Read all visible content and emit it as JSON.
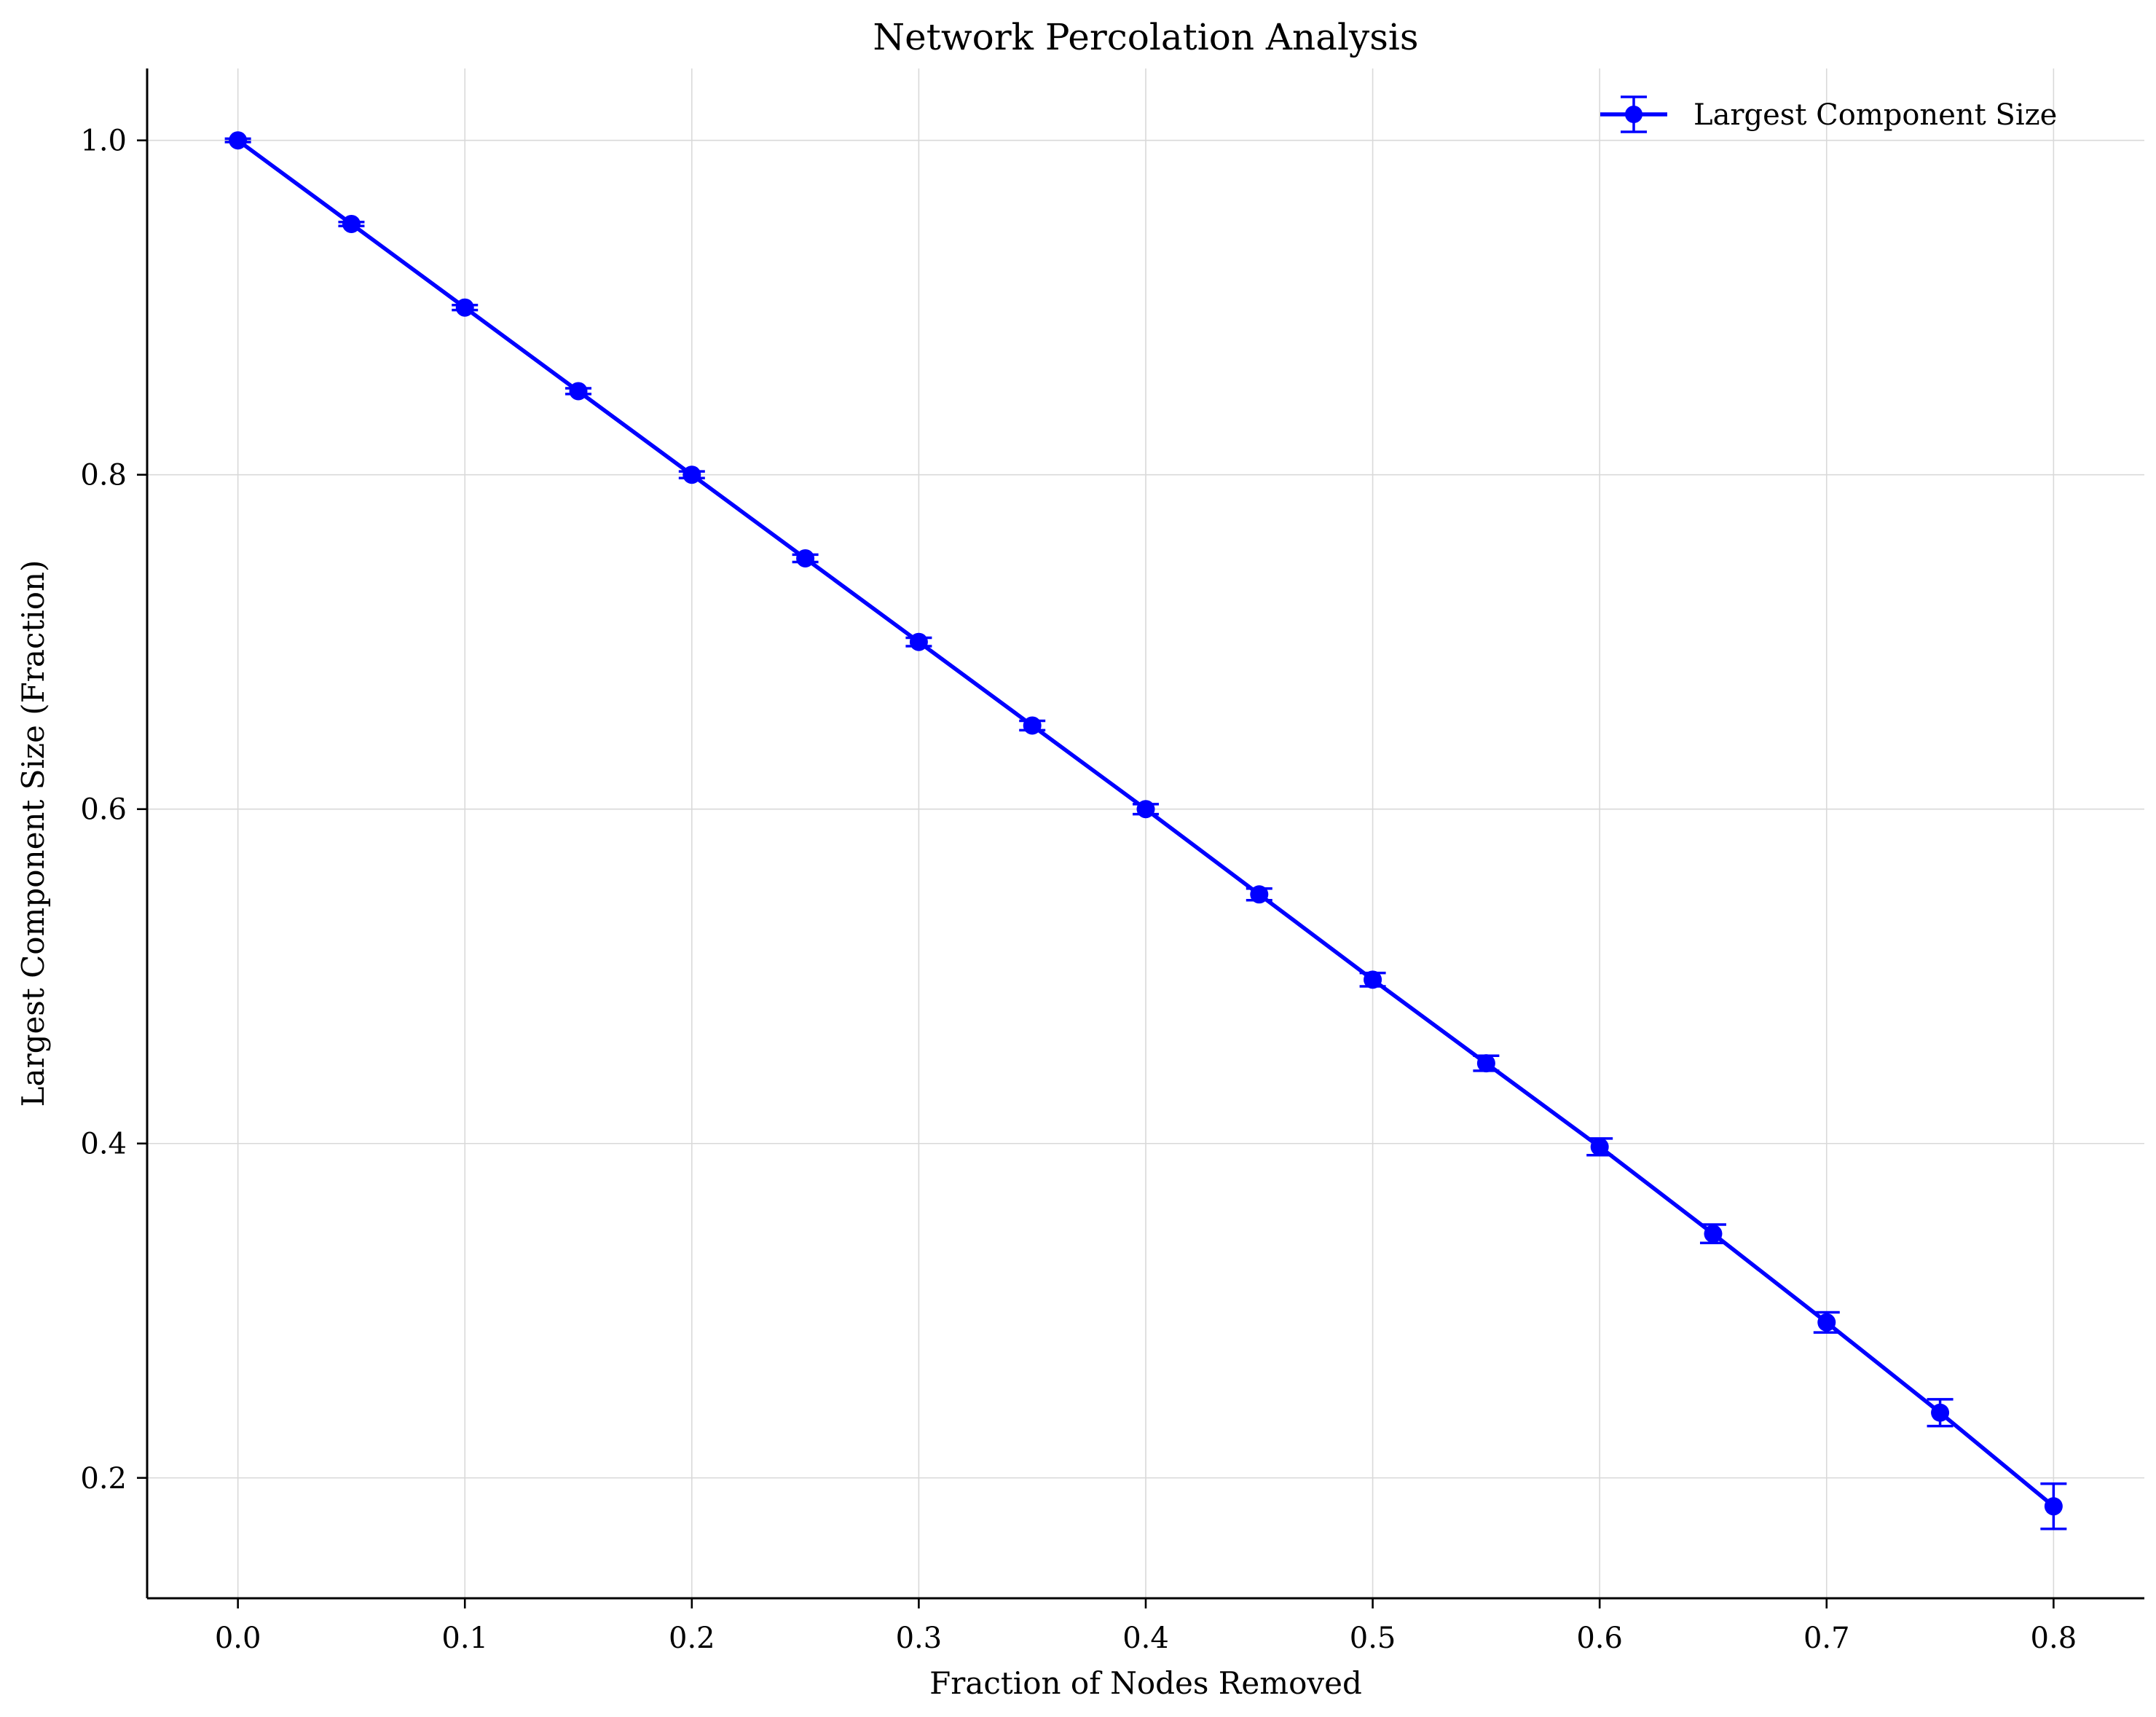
{
  "chart_data": {
    "type": "line",
    "title": "Network Percolation Analysis",
    "xlabel": "Fraction of Nodes Removed",
    "ylabel": "Largest Component Size (Fraction)",
    "xlim": [
      -0.04,
      0.84
    ],
    "ylim": [
      0.128,
      1.043
    ],
    "xticks": [
      0.0,
      0.1,
      0.2,
      0.3,
      0.4,
      0.5,
      0.6,
      0.7,
      0.8
    ],
    "xtick_labels": [
      "0.0",
      "0.1",
      "0.2",
      "0.3",
      "0.4",
      "0.5",
      "0.6",
      "0.7",
      "0.8"
    ],
    "yticks": [
      0.2,
      0.4,
      0.6,
      0.8,
      1.0
    ],
    "ytick_labels": [
      "0.2",
      "0.4",
      "0.6",
      "0.8",
      "1.0"
    ],
    "grid": true,
    "legend_position": "top-right",
    "series": [
      {
        "name": "Largest Component Size",
        "color": "#0000ff",
        "x": [
          0.0,
          0.05,
          0.1,
          0.15,
          0.2,
          0.25,
          0.3,
          0.35,
          0.4,
          0.45,
          0.5,
          0.55,
          0.6,
          0.65,
          0.7,
          0.75,
          0.8
        ],
        "y": [
          1.0,
          0.95,
          0.9,
          0.85,
          0.8,
          0.75,
          0.7,
          0.65,
          0.6,
          0.549,
          0.498,
          0.448,
          0.398,
          0.346,
          0.293,
          0.239,
          0.183
        ],
        "yerr": [
          0.001,
          0.0012,
          0.0015,
          0.0017,
          0.002,
          0.0022,
          0.0025,
          0.0028,
          0.003,
          0.0035,
          0.004,
          0.0045,
          0.005,
          0.0055,
          0.006,
          0.008,
          0.0135
        ]
      }
    ]
  }
}
